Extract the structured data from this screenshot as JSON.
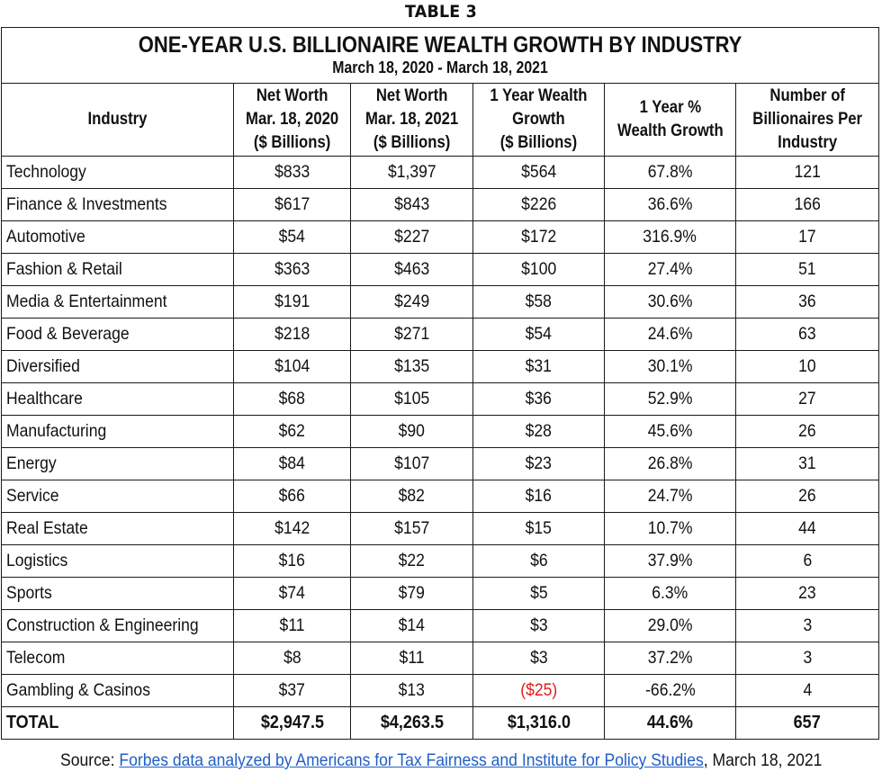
{
  "table_label": "TABLE 3",
  "title": "ONE-YEAR U.S. BILLIONAIRE WEALTH GROWTH BY INDUSTRY",
  "subtitle": "March 18, 2020 - March 18, 2021",
  "headers": {
    "industry": "Industry",
    "net_worth_2020": [
      "Net Worth",
      "Mar. 18, 2020",
      "($ Billions)"
    ],
    "net_worth_2021": [
      "Net Worth",
      "Mar. 18, 2021",
      "($ Billions)"
    ],
    "growth": [
      "1 Year Wealth",
      "Growth",
      "($ Billions)"
    ],
    "pct_growth": [
      "1 Year %",
      "Wealth Growth"
    ],
    "num_billionaires": [
      "Number of",
      "Billionaires Per",
      "Industry"
    ]
  },
  "rows": [
    {
      "industry": "Technology",
      "nw2020": "$833",
      "nw2021": "$1,397",
      "growth": "$564",
      "pct": "67.8%",
      "count": "121"
    },
    {
      "industry": "Finance & Investments",
      "nw2020": "$617",
      "nw2021": "$843",
      "growth": "$226",
      "pct": "36.6%",
      "count": "166"
    },
    {
      "industry": "Automotive",
      "nw2020": "$54",
      "nw2021": "$227",
      "growth": "$172",
      "pct": "316.9%",
      "count": "17"
    },
    {
      "industry": "Fashion & Retail",
      "nw2020": "$363",
      "nw2021": "$463",
      "growth": "$100",
      "pct": "27.4%",
      "count": "51"
    },
    {
      "industry": "Media & Entertainment",
      "nw2020": "$191",
      "nw2021": "$249",
      "growth": "$58",
      "pct": "30.6%",
      "count": "36"
    },
    {
      "industry": "Food & Beverage",
      "nw2020": "$218",
      "nw2021": "$271",
      "growth": "$54",
      "pct": "24.6%",
      "count": "63"
    },
    {
      "industry": "Diversified",
      "nw2020": "$104",
      "nw2021": "$135",
      "growth": "$31",
      "pct": "30.1%",
      "count": "10"
    },
    {
      "industry": "Healthcare",
      "nw2020": "$68",
      "nw2021": "$105",
      "growth": "$36",
      "pct": "52.9%",
      "count": "27"
    },
    {
      "industry": "Manufacturing",
      "nw2020": "$62",
      "nw2021": "$90",
      "growth": "$28",
      "pct": "45.6%",
      "count": "26"
    },
    {
      "industry": "Energy",
      "nw2020": "$84",
      "nw2021": "$107",
      "growth": "$23",
      "pct": "26.8%",
      "count": "31"
    },
    {
      "industry": "Service",
      "nw2020": "$66",
      "nw2021": "$82",
      "growth": "$16",
      "pct": "24.7%",
      "count": "26"
    },
    {
      "industry": "Real Estate",
      "nw2020": "$142",
      "nw2021": "$157",
      "growth": "$15",
      "pct": "10.7%",
      "count": "44"
    },
    {
      "industry": "Logistics",
      "nw2020": "$16",
      "nw2021": "$22",
      "growth": "$6",
      "pct": "37.9%",
      "count": "6"
    },
    {
      "industry": "Sports",
      "nw2020": "$74",
      "nw2021": "$79",
      "growth": "$5",
      "pct": "6.3%",
      "count": "23"
    },
    {
      "industry": "Construction & Engineering",
      "nw2020": "$11",
      "nw2021": "$14",
      "growth": "$3",
      "pct": "29.0%",
      "count": "3"
    },
    {
      "industry": "Telecom",
      "nw2020": "$8",
      "nw2021": "$11",
      "growth": "$3",
      "pct": "37.2%",
      "count": "3"
    },
    {
      "industry": "Gambling & Casinos",
      "nw2020": "$37",
      "nw2021": "$13",
      "growth": "($25)",
      "pct": "-66.2%",
      "count": "4",
      "growth_negative": true
    }
  ],
  "total": {
    "industry": "TOTAL",
    "nw2020": "$2,947.5",
    "nw2021": "$4,263.5",
    "growth": "$1,316.0",
    "pct": "44.6%",
    "count": "657"
  },
  "source": {
    "prefix": "Source: ",
    "link_text": "Forbes data analyzed by Americans for Tax Fairness and Institute for Policy Studies",
    "suffix": ", March 18, 2021"
  },
  "colors": {
    "negative": "#e01b1b",
    "link": "#1f5fc8",
    "border": "#1a1a1a"
  }
}
